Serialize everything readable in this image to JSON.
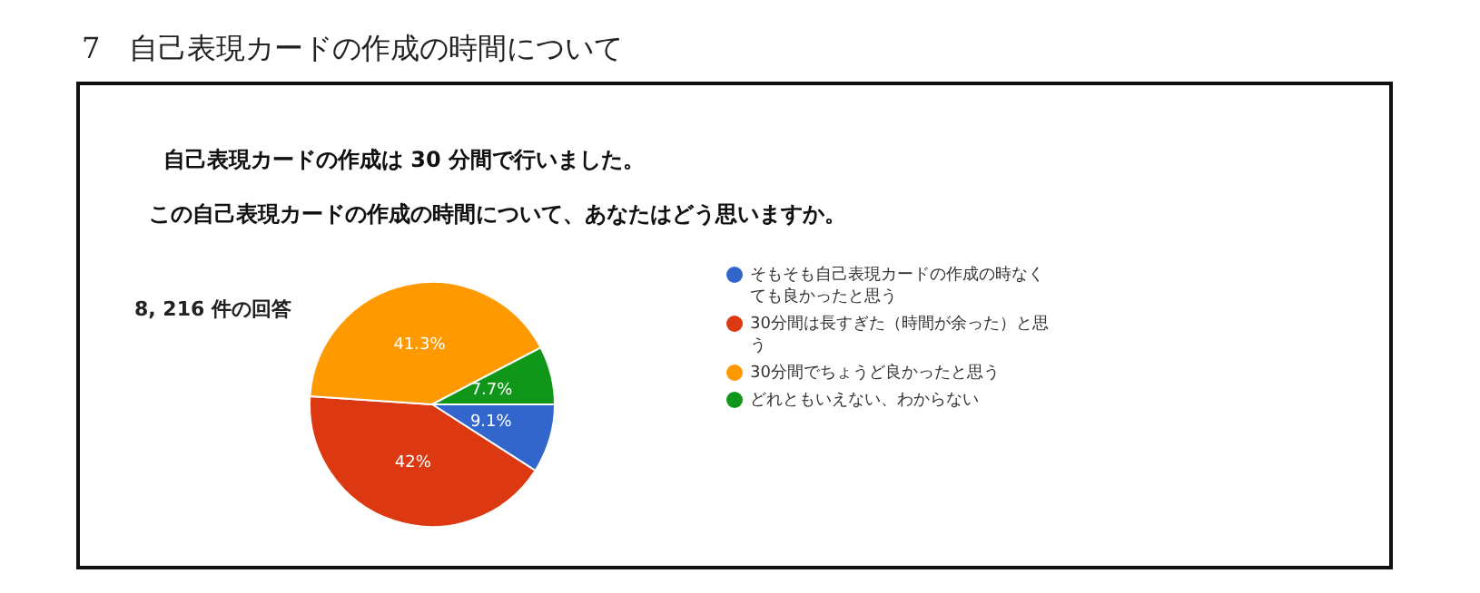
{
  "chart_data": {
    "type": "pie",
    "title": "7　自己表現カードの作成の時間について",
    "subtitle": "自己表現カードの作成は 30 分間で行いました。",
    "annotations": [
      "この自己表現カードの作成の時間について、あなたはどう思いますか。",
      "8, 216 件の回答"
    ],
    "categories": [
      "そもそも自己表現カードの作成の時なくても良かったと思う",
      "30分間は長すぎた（時間が余った）と思う",
      "30分間でちょうど良かったと思う",
      "どれともいえない、わからない"
    ],
    "values": [
      9.1,
      42,
      41.3,
      7.7
    ],
    "colors": [
      "#3366cc",
      "#dc3912",
      "#ff9900",
      "#109618"
    ],
    "value_labels": [
      "9.1%",
      "42%",
      "41.3%",
      "7.7%"
    ],
    "legend": "right"
  }
}
